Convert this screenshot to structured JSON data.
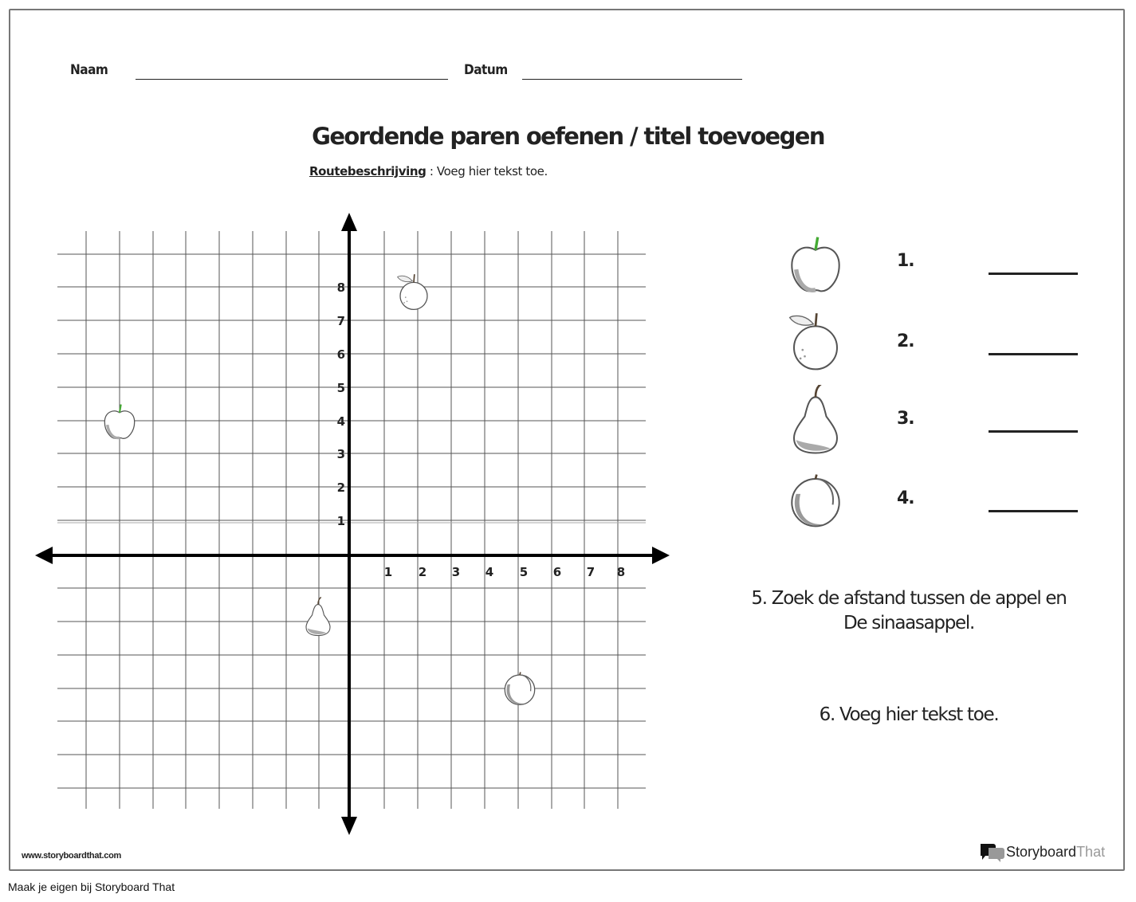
{
  "header": {
    "name_label": "Naam",
    "date_label": "Datum"
  },
  "title": "Geordende paren oefenen / titel toevoegen",
  "directions": {
    "label": "Routebeschrijving",
    "separator": " : ",
    "text": "Voeg hier tekst toe."
  },
  "grid": {
    "y_tick_labels": [
      "1",
      "2",
      "3",
      "4",
      "5",
      "6",
      "7",
      "8"
    ],
    "x_tick_labels": [
      "1",
      "2",
      "3",
      "4",
      "5",
      "6",
      "7",
      "8"
    ],
    "fruits_on_grid": [
      {
        "name": "apple-icon"
      },
      {
        "name": "orange-icon"
      },
      {
        "name": "pear-icon"
      },
      {
        "name": "peach-icon"
      }
    ]
  },
  "questions": [
    {
      "number": "1.",
      "icon": "apple-icon"
    },
    {
      "number": "2.",
      "icon": "orange-icon"
    },
    {
      "number": "3.",
      "icon": "pear-icon"
    },
    {
      "number": "4.",
      "icon": "peach-icon"
    }
  ],
  "question5": {
    "line1": "5. Zoek de afstand tussen de appel en",
    "line2": "De sinaasappel."
  },
  "question6": "6. Voeg hier tekst toe.",
  "watermark_url": "www.storyboardthat.com",
  "brand": {
    "part1": "Storyboard",
    "part2": "That"
  },
  "footer": "Maak je eigen bij Storyboard That"
}
